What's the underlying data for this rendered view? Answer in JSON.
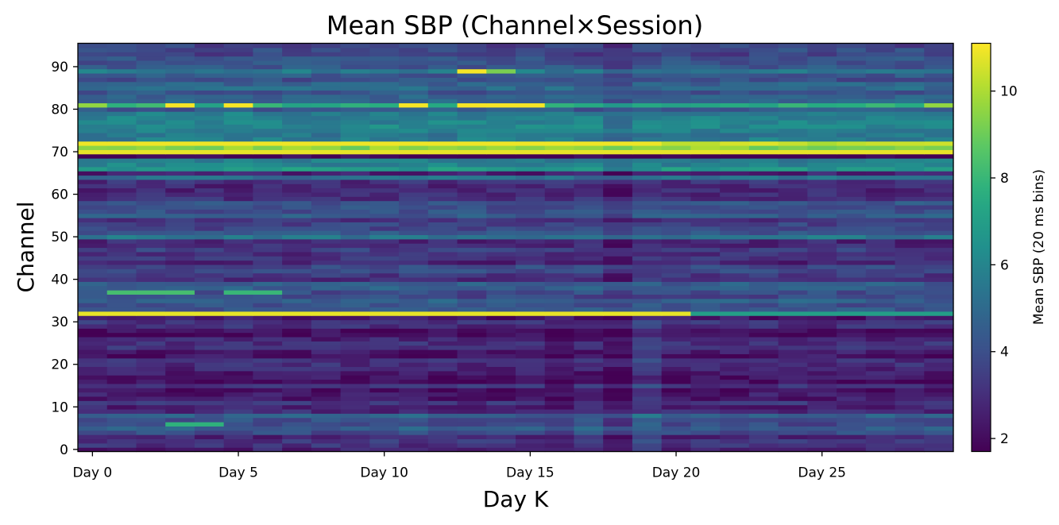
{
  "chart_data": {
    "type": "heatmap",
    "title": "Mean SBP (Channel×Session)",
    "xlabel": "Day K",
    "ylabel": "Channel",
    "colorbar_label": "Mean SBP (20 ms bins)",
    "colormap": "viridis",
    "n_sessions": 30,
    "n_channels": 96,
    "xlim": [
      -0.5,
      29.5
    ],
    "ylim": [
      -0.5,
      95.5
    ],
    "vlim": [
      1.7,
      11.1
    ],
    "xticks": [
      {
        "value": 0,
        "label": "Day 0"
      },
      {
        "value": 5,
        "label": "Day 5"
      },
      {
        "value": 10,
        "label": "Day 10"
      },
      {
        "value": 15,
        "label": "Day 15"
      },
      {
        "value": 20,
        "label": "Day 20"
      },
      {
        "value": 25,
        "label": "Day 25"
      }
    ],
    "yticks": [
      0,
      10,
      20,
      30,
      40,
      50,
      60,
      70,
      80,
      90
    ],
    "colorbar_ticks": [
      2,
      4,
      6,
      8,
      10
    ],
    "grid": false,
    "legend": "none",
    "channel_profiles": [
      {
        "channels": [
          0,
          3
        ],
        "mean": 2.9
      },
      {
        "channels": [
          4,
          8
        ],
        "mean": 4.3
      },
      {
        "channels": [
          9,
          30
        ],
        "mean": 2.6
      },
      {
        "channels": [
          31,
          31
        ],
        "mean": 2.2
      },
      {
        "channels": [
          32,
          32
        ],
        "mean": 10.4
      },
      {
        "channels": [
          33,
          39
        ],
        "mean": 4.0
      },
      {
        "channels": [
          40,
          49
        ],
        "mean": 3.3
      },
      {
        "channels": [
          50,
          50
        ],
        "mean": 5.0
      },
      {
        "channels": [
          51,
          58
        ],
        "mean": 3.8
      },
      {
        "channels": [
          59,
          63
        ],
        "mean": 3.0
      },
      {
        "channels": [
          64,
          64
        ],
        "mean": 4.8
      },
      {
        "channels": [
          65,
          65
        ],
        "mean": 2.2
      },
      {
        "channels": [
          66,
          68
        ],
        "mean": 6.2
      },
      {
        "channels": [
          69,
          69
        ],
        "mean": 1.8
      },
      {
        "channels": [
          70,
          70
        ],
        "mean": 10.6
      },
      {
        "channels": [
          71,
          71
        ],
        "mean": 9.8
      },
      {
        "channels": [
          72,
          72
        ],
        "mean": 10.4
      },
      {
        "channels": [
          73,
          79
        ],
        "mean": 5.5
      },
      {
        "channels": [
          80,
          80
        ],
        "mean": 3.8
      },
      {
        "channels": [
          81,
          81
        ],
        "mean": 8.0
      },
      {
        "channels": [
          82,
          88
        ],
        "mean": 4.6
      },
      {
        "channels": [
          89,
          89
        ],
        "mean": 5.2
      },
      {
        "channels": [
          90,
          95
        ],
        "mean": 3.9
      }
    ],
    "hot_cells": [
      {
        "channel": 32,
        "sessions": [
          0,
          20
        ],
        "value": 10.8
      },
      {
        "channel": 32,
        "sessions": [
          21,
          29
        ],
        "value": 7.0
      },
      {
        "channel": 70,
        "sessions": [
          0,
          29
        ],
        "value": 10.8
      },
      {
        "channel": 72,
        "sessions": [
          0,
          19
        ],
        "value": 10.9
      },
      {
        "channel": 81,
        "sessions": [
          3,
          3
        ],
        "value": 11.0
      },
      {
        "channel": 81,
        "sessions": [
          5,
          5
        ],
        "value": 11.0
      },
      {
        "channel": 81,
        "sessions": [
          11,
          11
        ],
        "value": 11.0
      },
      {
        "channel": 81,
        "sessions": [
          13,
          15
        ],
        "value": 11.0
      },
      {
        "channel": 81,
        "sessions": [
          0,
          0
        ],
        "value": 9.6
      },
      {
        "channel": 81,
        "sessions": [
          29,
          29
        ],
        "value": 9.6
      },
      {
        "channel": 89,
        "sessions": [
          13,
          13
        ],
        "value": 11.0
      },
      {
        "channel": 89,
        "sessions": [
          14,
          14
        ],
        "value": 9.2
      },
      {
        "channel": 37,
        "sessions": [
          1,
          3
        ],
        "value": 8.3
      },
      {
        "channel": 37,
        "sessions": [
          5,
          6
        ],
        "value": 8.0
      },
      {
        "channel": 6,
        "sessions": [
          3,
          4
        ],
        "value": 7.8
      }
    ],
    "dim_columns": [
      {
        "sessions": [
          16,
          16
        ],
        "channel_range": [
          0,
          30
        ],
        "delta": -0.5
      },
      {
        "sessions": [
          18,
          18
        ],
        "channel_range": [
          0,
          95
        ],
        "delta": -0.6
      },
      {
        "sessions": [
          19,
          19
        ],
        "channel_range": [
          0,
          30
        ],
        "delta": 0.6
      }
    ]
  }
}
